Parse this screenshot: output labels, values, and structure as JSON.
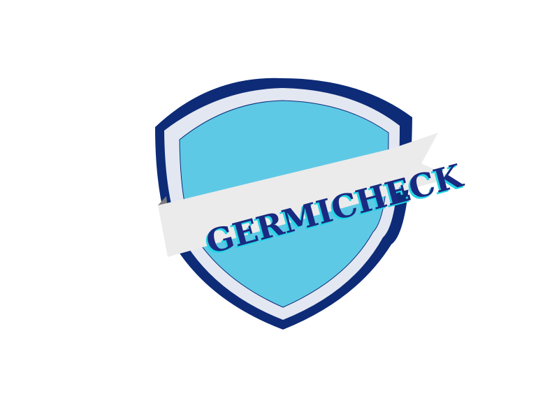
{
  "logo": {
    "wordmark": "GERMICHECK",
    "colors": {
      "background": "#ffffff",
      "shield_outer": "#0d2b77",
      "shield_border": "#e3e7f2",
      "shield_inner": "#5ec9e5",
      "banner": "#ebebeb",
      "banner_fold": "#7b7b7b",
      "text_main": "#1a2a80",
      "text_shadow": "#22d6e6"
    }
  }
}
